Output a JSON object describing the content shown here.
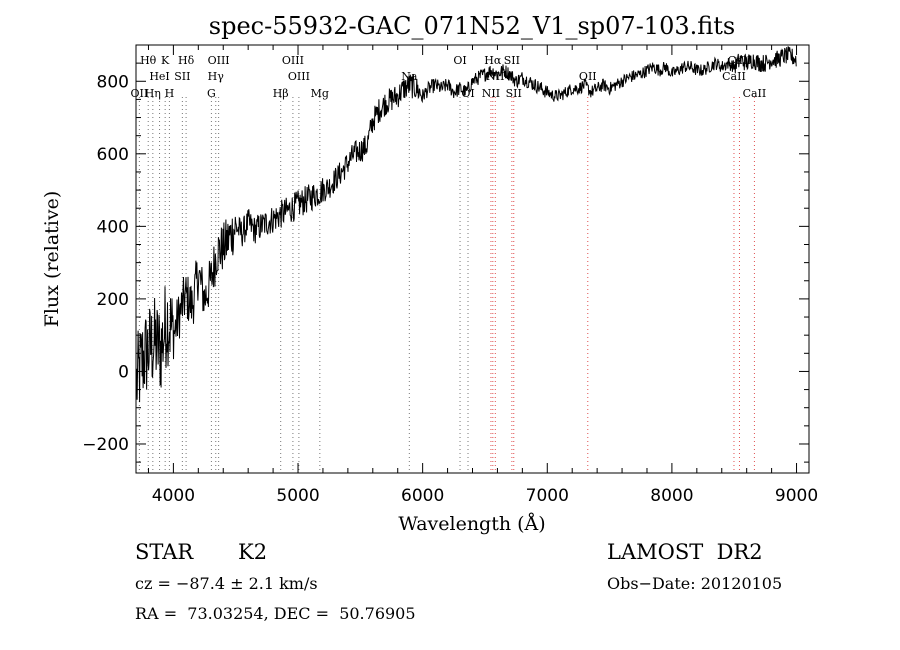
{
  "chart_data": {
    "type": "line",
    "title": "spec-55932-GAC_071N52_V1_sp07-103.fits",
    "xlabel": "Wavelength (Å)",
    "ylabel": "Flux (relative)",
    "xlim": [
      3700,
      9100
    ],
    "ylim": [
      -280,
      900
    ],
    "xticks": [
      4000,
      5000,
      6000,
      7000,
      8000,
      9000
    ],
    "yticks": [
      -200,
      0,
      200,
      400,
      600,
      800
    ],
    "grid": false,
    "spectrum": {
      "x": [
        3700,
        3750,
        3800,
        3850,
        3900,
        3950,
        4000,
        4050,
        4100,
        4150,
        4200,
        4250,
        4300,
        4350,
        4400,
        4450,
        4500,
        4550,
        4600,
        4650,
        4700,
        4750,
        4800,
        4850,
        4900,
        4950,
        5000,
        5050,
        5100,
        5150,
        5200,
        5250,
        5300,
        5350,
        5400,
        5450,
        5500,
        5550,
        5600,
        5650,
        5700,
        5750,
        5800,
        5850,
        5900,
        5950,
        6000,
        6050,
        6100,
        6150,
        6200,
        6250,
        6300,
        6350,
        6400,
        6450,
        6500,
        6550,
        6600,
        6650,
        6700,
        6750,
        6800,
        6850,
        6900,
        6950,
        7000,
        7050,
        7100,
        7150,
        7200,
        7250,
        7300,
        7350,
        7400,
        7450,
        7500,
        7550,
        7600,
        7650,
        7700,
        7750,
        7800,
        7850,
        7900,
        7950,
        8000,
        8050,
        8100,
        8150,
        8200,
        8250,
        8300,
        8350,
        8400,
        8450,
        8500,
        8550,
        8600,
        8650,
        8700,
        8750,
        8800,
        8850,
        8900,
        8950,
        9000
      ],
      "y": [
        -40,
        30,
        60,
        80,
        60,
        150,
        100,
        160,
        210,
        180,
        270,
        200,
        250,
        330,
        340,
        370,
        400,
        380,
        410,
        390,
        400,
        410,
        420,
        430,
        440,
        450,
        460,
        470,
        480,
        490,
        500,
        510,
        530,
        550,
        575,
        600,
        610,
        620,
        690,
        720,
        740,
        750,
        760,
        780,
        790,
        780,
        760,
        780,
        790,
        780,
        790,
        770,
        780,
        770,
        800,
        810,
        820,
        830,
        820,
        830,
        820,
        800,
        810,
        800,
        790,
        780,
        770,
        760,
        760,
        770,
        780,
        780,
        790,
        770,
        780,
        790,
        780,
        790,
        800,
        810,
        815,
        820,
        830,
        840,
        830,
        840,
        820,
        830,
        840,
        840,
        830,
        830,
        840,
        850,
        840,
        850,
        840,
        860,
        850,
        860,
        850,
        850,
        860,
        860,
        870,
        870,
        860
      ]
    },
    "lines": [
      {
        "label": "Hθ",
        "x": 3798,
        "row": 0,
        "color": "#777777"
      },
      {
        "label": "K",
        "x": 3934,
        "row": 0,
        "color": "#777777"
      },
      {
        "label": "Hδ",
        "x": 4102,
        "row": 0,
        "color": "#777777"
      },
      {
        "label": "OIII",
        "x": 4363,
        "row": 0,
        "color": "#777777"
      },
      {
        "label": "OIII",
        "x": 4959,
        "row": 0,
        "color": "#777777"
      },
      {
        "label": "OI",
        "x": 6300,
        "row": 0,
        "color": "#777777"
      },
      {
        "label": "Hα",
        "x": 6563,
        "row": 0,
        "color": "#e05050"
      },
      {
        "label": "SII",
        "x": 6716,
        "row": 0,
        "color": "#e05050"
      },
      {
        "label": "CaII",
        "x": 8542,
        "row": 0,
        "color": "#e05050"
      },
      {
        "label": "HeI",
        "x": 3889,
        "row": 1,
        "color": "#777777"
      },
      {
        "label": "SII",
        "x": 4072,
        "row": 1,
        "color": "#777777"
      },
      {
        "label": "Hγ",
        "x": 4340,
        "row": 1,
        "color": "#777777"
      },
      {
        "label": "OIII",
        "x": 5007,
        "row": 1,
        "color": "#777777"
      },
      {
        "label": "Na",
        "x": 5893,
        "row": 1,
        "color": "#777777"
      },
      {
        "label": "NII",
        "x": 6583,
        "row": 1,
        "color": "#e05050"
      },
      {
        "label": "OII",
        "x": 7325,
        "row": 1,
        "color": "#e05050"
      },
      {
        "label": "CaII",
        "x": 8498,
        "row": 1,
        "color": "#e05050"
      },
      {
        "label": "OII",
        "x": 3727,
        "row": 2,
        "color": "#777777"
      },
      {
        "label": "Hη",
        "x": 3835,
        "row": 2,
        "color": "#777777"
      },
      {
        "label": "H",
        "x": 3968,
        "row": 2,
        "color": "#777777"
      },
      {
        "label": "G",
        "x": 4305,
        "row": 2,
        "color": "#777777"
      },
      {
        "label": "Hβ",
        "x": 4861,
        "row": 2,
        "color": "#777777"
      },
      {
        "label": "Mg",
        "x": 5175,
        "row": 2,
        "color": "#777777"
      },
      {
        "label": "OI",
        "x": 6364,
        "row": 2,
        "color": "#777777"
      },
      {
        "label": "NII",
        "x": 6548,
        "row": 2,
        "color": "#e05050"
      },
      {
        "label": "SII",
        "x": 6731,
        "row": 2,
        "color": "#e05050"
      },
      {
        "label": "CaII",
        "x": 8662,
        "row": 2,
        "color": "#e05050"
      }
    ]
  },
  "info": {
    "class": "STAR",
    "subclass": "K2",
    "survey": "LAMOST  DR2",
    "redshift": "cz = −87.4 ± 2.1 km/s",
    "obs_date": "Obs−Date: 20120105",
    "coords": "RA =  73.03254, DEC =  50.76905"
  }
}
